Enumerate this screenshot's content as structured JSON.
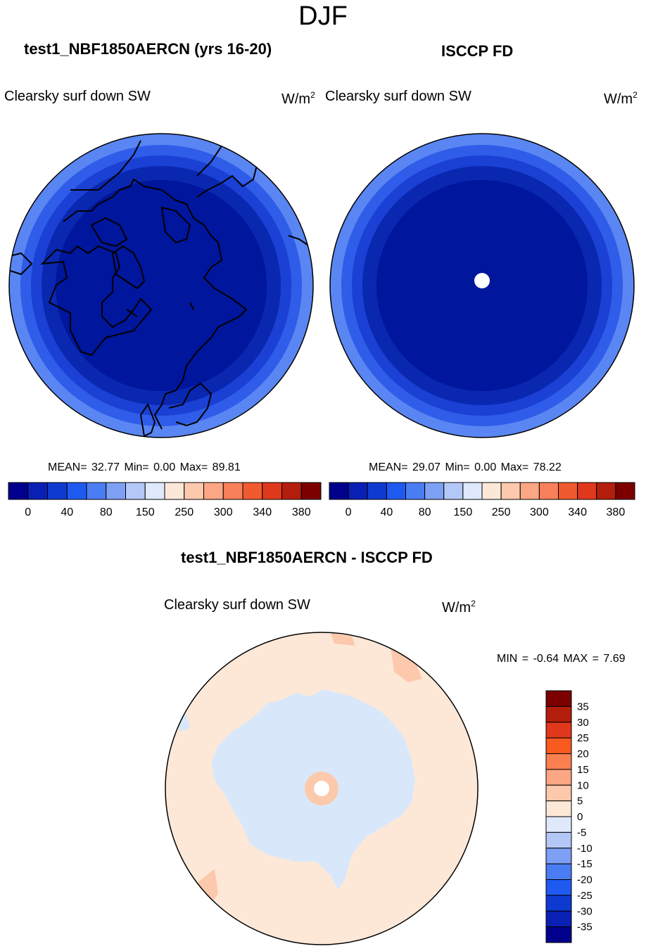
{
  "figure_title": "DJF",
  "panels": {
    "model": {
      "title": "test1_NBF1850AERCN (yrs 16-20)",
      "variable": "Clearsky surf down SW",
      "units_base": "W/m",
      "units_exp": "2",
      "stats": "MEAN=  32.77  Min=   0.00  Max=  89.81"
    },
    "obs": {
      "title": "ISCCP FD",
      "variable": "Clearsky surf down SW",
      "units_base": "W/m",
      "units_exp": "2",
      "stats": "MEAN=  29.07  Min=   0.00  Max=  78.22"
    },
    "diff": {
      "title": "test1_NBF1850AERCN - ISCCP FD",
      "variable": "Clearsky surf down SW",
      "units_base": "W/m",
      "units_exp": "2",
      "minmax": "MIN =  -0.64 MAX =   7.69"
    }
  },
  "chart_data": [
    {
      "type": "heatmap",
      "title": "test1_NBF1850AERCN (yrs 16-20)",
      "projection": "north polar stereographic",
      "mean": 32.77,
      "min": 0.0,
      "max": 89.81,
      "colorbar_colors": [
        "#00008c",
        "#0a20b4",
        "#0f3ad2",
        "#1f5af0",
        "#4a7df4",
        "#7ea0f4",
        "#b4c8f8",
        "#dfe9fb",
        "#fde8d8",
        "#fcc9ac",
        "#fca684",
        "#f8805a",
        "#f05a30",
        "#e0381c",
        "#b41e0c",
        "#7c0000"
      ],
      "colorbar_tick_labels": [
        "0",
        "40",
        "80",
        "150",
        "250",
        "300",
        "340",
        "380"
      ],
      "rings_inner_to_outer": [
        "#00169c",
        "#0a27b0",
        "#1a40d4",
        "#2f5ce8",
        "#5a86f3"
      ]
    },
    {
      "type": "heatmap",
      "title": "ISCCP FD",
      "projection": "north polar stereographic",
      "mean": 29.07,
      "min": 0.0,
      "max": 78.22,
      "colorbar_colors": [
        "#00008c",
        "#0a20b4",
        "#0f3ad2",
        "#1f5af0",
        "#4a7df4",
        "#7ea0f4",
        "#b4c8f8",
        "#dfe9fb",
        "#fde8d8",
        "#fcc9ac",
        "#fca684",
        "#f8805a",
        "#f05a30",
        "#e0381c",
        "#b41e0c",
        "#7c0000"
      ],
      "colorbar_tick_labels": [
        "0",
        "40",
        "80",
        "150",
        "250",
        "300",
        "340",
        "380"
      ],
      "rings_inner_to_outer": [
        "#00169c",
        "#0a27b0",
        "#1a40d4",
        "#2f5ce8",
        "#5a86f3"
      ]
    },
    {
      "type": "heatmap",
      "title": "test1_NBF1850AERCN - ISCCP FD",
      "projection": "north polar stereographic",
      "min": -0.64,
      "max": 7.69,
      "colorbar_levels": [
        "35",
        "30",
        "25",
        "20",
        "15",
        "10",
        "5",
        "0",
        "-5",
        "-10",
        "-15",
        "-20",
        "-25",
        "-30",
        "-35"
      ],
      "colorbar_colors": [
        "#7c0000",
        "#b41e0c",
        "#e0381c",
        "#f85a20",
        "#fb8050",
        "#fca684",
        "#fcc9ac",
        "#fde8d8",
        "#dfe9fb",
        "#b4c8f8",
        "#7ea0f4",
        "#4a7df4",
        "#1f5af0",
        "#0f3ad2",
        "#0a20b4",
        "#00008c"
      ],
      "field_colors": {
        "positive_small": "#fde8d8",
        "negative_small": "#d8e8fa",
        "positive_mid": "#fcc9ac"
      }
    }
  ]
}
